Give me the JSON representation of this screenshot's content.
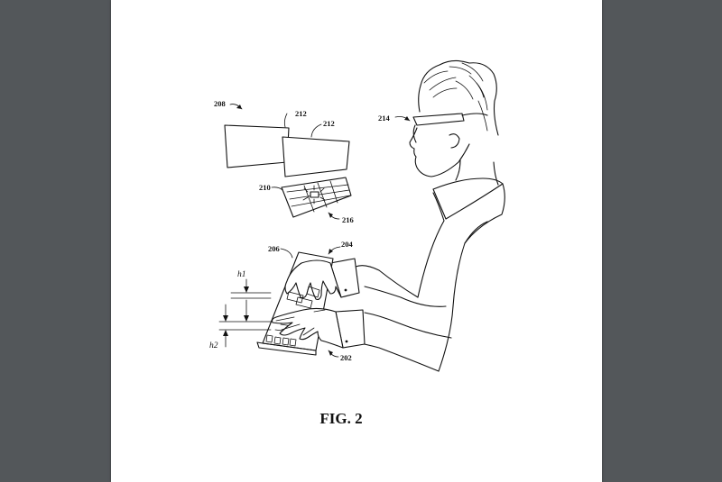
{
  "figure": {
    "caption": "FIG. 2",
    "references": {
      "r202": "202",
      "r204": "204",
      "r206": "206",
      "r208": "208",
      "r210": "210",
      "r212a": "212",
      "r212b": "212",
      "r214": "214",
      "r216": "216"
    },
    "dimensions": {
      "h1": "h1",
      "h2": "h2"
    }
  },
  "colors": {
    "viewer_background": "#53575a",
    "page_background": "#ffffff",
    "ink": "#111111"
  }
}
